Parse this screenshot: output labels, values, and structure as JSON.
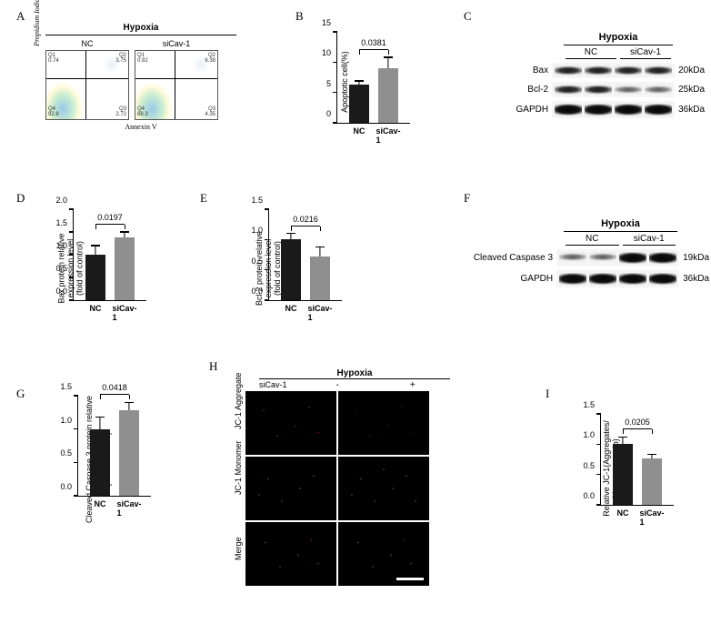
{
  "panels": {
    "A": {
      "letter": "A"
    },
    "B": {
      "letter": "B"
    },
    "C": {
      "letter": "C"
    },
    "D": {
      "letter": "D"
    },
    "E": {
      "letter": "E"
    },
    "F": {
      "letter": "F"
    },
    "G": {
      "letter": "G"
    },
    "H": {
      "letter": "H"
    },
    "I": {
      "letter": "I"
    }
  },
  "flow": {
    "title": "Hypoxia",
    "ylab": "Propidium Iodide",
    "xlab": "Annexin V",
    "left": {
      "label": "NC",
      "q1": "Q1\n0.74",
      "q2": "Q2\n3.75",
      "q3": "Q3\n2.72",
      "q4": "Q4\n92.8"
    },
    "right": {
      "label": "siCav-1",
      "q1": "Q1\n0.92",
      "q2": "Q2\n6.38",
      "q3": "Q3\n4.35",
      "q4": "Q4\n88.3"
    }
  },
  "chartB": {
    "ylab": "Apoptotic cell(%)",
    "ymax": 15,
    "ytick_step": 5,
    "yticks": [
      "0",
      "5",
      "10",
      "15"
    ],
    "colors": [
      "#1a1a1a",
      "#8f8f8f"
    ],
    "groups": [
      "NC",
      "siCav-1"
    ],
    "values": [
      6.3,
      9.0
    ],
    "errors": [
      0.6,
      1.8
    ],
    "pvalue": "0.0381"
  },
  "wbC": {
    "title": "Hypoxia",
    "groups": [
      "NC",
      "siCav-1"
    ],
    "rows": [
      {
        "name": "Bax",
        "kda": "20kDa",
        "intens": [
          "n",
          "n",
          "n",
          "n"
        ]
      },
      {
        "name": "Bcl-2",
        "kda": "25kDa",
        "intens": [
          "n",
          "n",
          "f",
          "f"
        ]
      },
      {
        "name": "GAPDH",
        "kda": "36kDa",
        "intens": [
          "s",
          "s",
          "s",
          "s"
        ]
      }
    ]
  },
  "chartD": {
    "ylab": "Bax protein relative\nexpression level\n(fold of control)",
    "ymax": 2.0,
    "ytick_step": 0.5,
    "yticks": [
      "0.0",
      "0.5",
      "1.0",
      "1.5",
      "2.0"
    ],
    "colors": [
      "#1a1a1a",
      "#8f8f8f"
    ],
    "groups": [
      "NC",
      "siCav-1"
    ],
    "values": [
      1.0,
      1.38
    ],
    "errors": [
      0.2,
      0.12
    ],
    "pvalue": "0.0197"
  },
  "chartE": {
    "ylab": "Bcl-2 protein relative\nexpression level\n(fold of control)",
    "ymax": 1.5,
    "ytick_step": 0.5,
    "yticks": [
      "0.0",
      "0.5",
      "1.0",
      "1.5"
    ],
    "colors": [
      "#1a1a1a",
      "#8f8f8f"
    ],
    "groups": [
      "NC",
      "siCav-1"
    ],
    "values": [
      1.0,
      0.72
    ],
    "errors": [
      0.1,
      0.16
    ],
    "pvalue": "0.0216"
  },
  "wbF": {
    "title": "Hypoxia",
    "groups": [
      "NC",
      "siCav-1"
    ],
    "rows": [
      {
        "name": "Cleaved Caspase 3",
        "kda": "19kDa",
        "intens": [
          "f",
          "f",
          "s",
          "s"
        ]
      },
      {
        "name": "GAPDH",
        "kda": "36kDa",
        "intens": [
          "s",
          "s",
          "s",
          "s"
        ]
      }
    ]
  },
  "chartG": {
    "ylab": "Cleaved Caspase 3 protein relative\nexpression level\n(fold of control)",
    "ymax": 1.5,
    "ytick_step": 0.5,
    "yticks": [
      "0.0",
      "0.5",
      "1.0",
      "1.5"
    ],
    "colors": [
      "#1a1a1a",
      "#8f8f8f"
    ],
    "groups": [
      "NC",
      "siCav-1"
    ],
    "values": [
      1.0,
      1.28
    ],
    "errors": [
      0.18,
      0.12
    ],
    "pvalue": "0.0418"
  },
  "jc1": {
    "title": "Hypoxia",
    "treat_label": "siCav-1",
    "col_labels": [
      "-",
      "+"
    ],
    "rows": [
      "JC-1 Aggregate",
      "JC-1 Monomer",
      "Merge"
    ]
  },
  "chartI": {
    "ylab": "Relative JC-1(Aggregates/\nMonomers ratio)",
    "ymax": 1.5,
    "ytick_step": 0.5,
    "yticks": [
      "0.0",
      "0.5",
      "1.0",
      "1.5"
    ],
    "colors": [
      "#1a1a1a",
      "#8f8f8f"
    ],
    "groups": [
      "NC",
      "siCav-1"
    ],
    "values": [
      1.0,
      0.77
    ],
    "errors": [
      0.12,
      0.06
    ],
    "pvalue": "0.0205"
  }
}
